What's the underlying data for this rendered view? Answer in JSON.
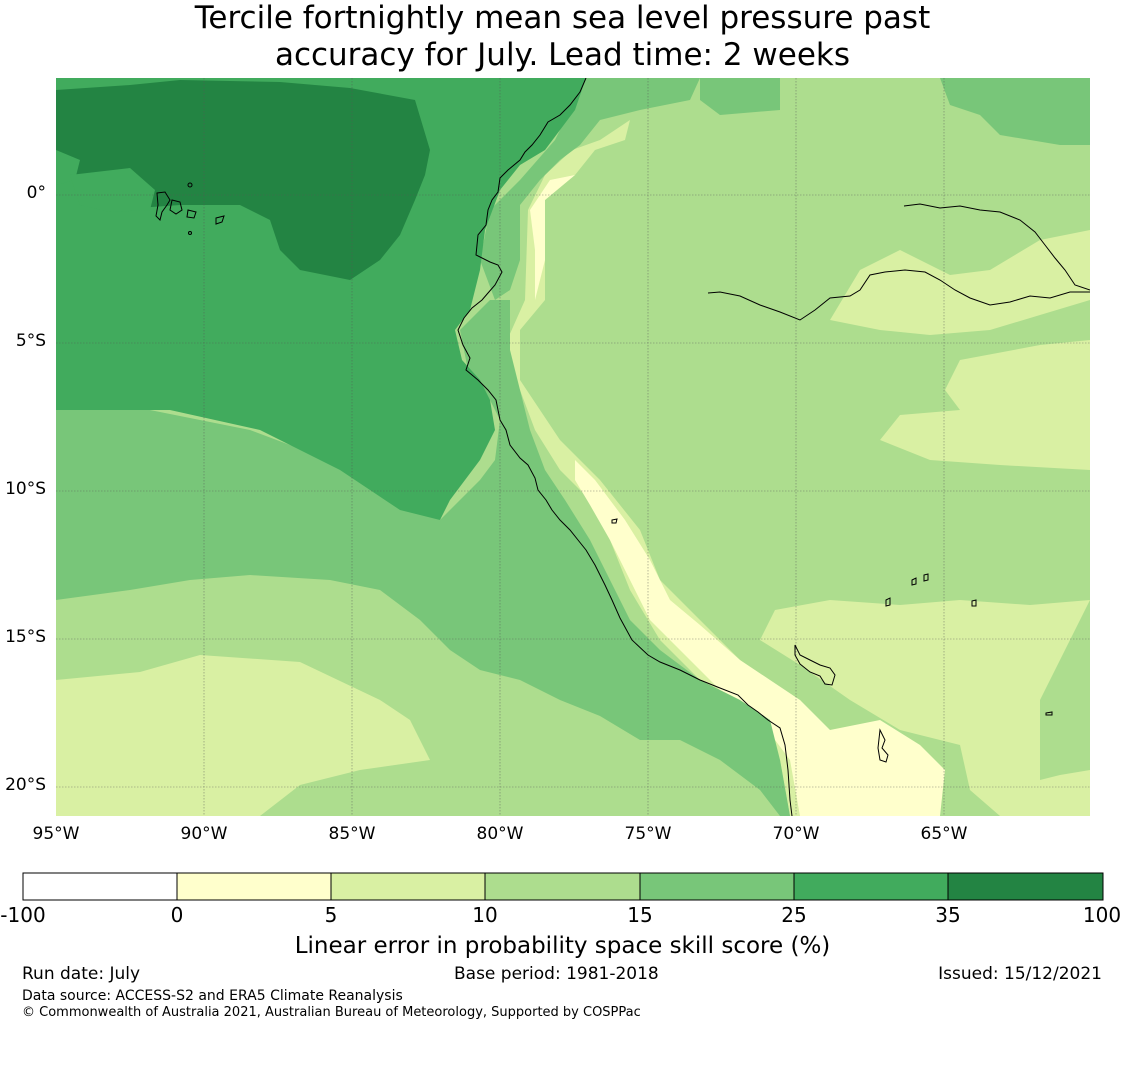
{
  "title": {
    "line1": "Tercile fortnightly mean sea level pressure past",
    "line2": "accuracy for July. Lead time: 2 weeks"
  },
  "map": {
    "lat_labels": [
      "0°",
      "5°S",
      "10°S",
      "15°S",
      "20°S"
    ],
    "lon_labels": [
      "95°W",
      "90°W",
      "85°W",
      "80°W",
      "75°W",
      "70°W",
      "65°W"
    ],
    "extent": {
      "lon_min": -95,
      "lon_max": -60,
      "lat_min": -21,
      "lat_max": 4
    }
  },
  "colorbar": {
    "ticks": [
      "-100",
      "0",
      "5",
      "10",
      "15",
      "25",
      "35",
      "100"
    ],
    "colors": [
      "#ffffff",
      "#ffffcc",
      "#d9f0a3",
      "#addd8e",
      "#78c679",
      "#41ab5d",
      "#238443"
    ],
    "label": "Linear error in probability space skill score (%)"
  },
  "footer": {
    "run_date": "Run date: July",
    "base_period": "Base period: 1981-2018",
    "issued": "Issued: 15/12/2021",
    "data_source": "Data source: ACCESS-S2 and ERA5 Climate Reanalysis",
    "copyright": "© Commonwealth of Australia 2021, Australian Bureau of Meteorology, Supported by COSPPac"
  }
}
